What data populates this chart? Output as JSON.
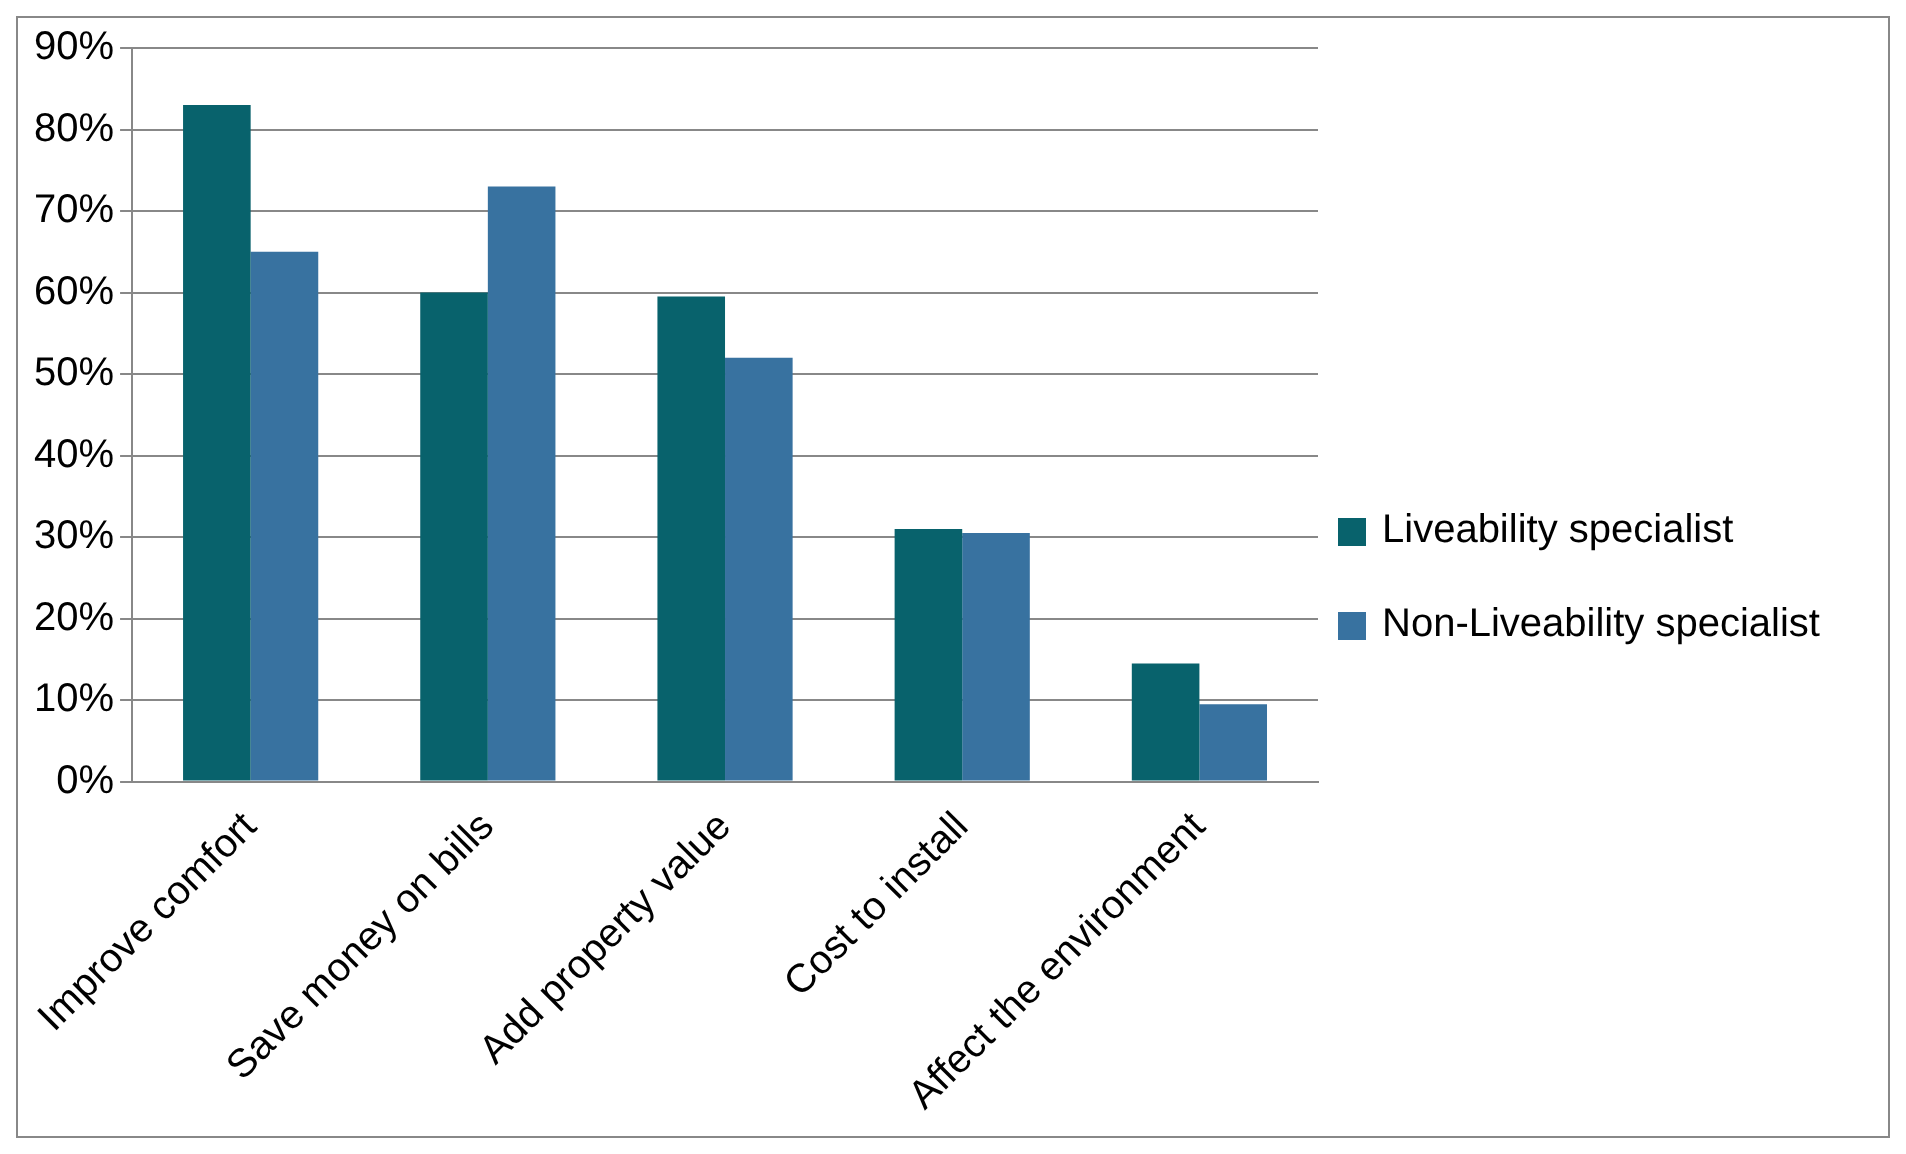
{
  "chart_data": {
    "type": "bar",
    "categories": [
      "Improve comfort",
      "Save money on bills",
      "Add property value",
      "Cost to install",
      "Affect the environment"
    ],
    "series": [
      {
        "name": "Liveability specialist",
        "color": "#08626c",
        "values": [
          83,
          60,
          59.5,
          31,
          14.5
        ]
      },
      {
        "name": "Non-Liveability specialist",
        "color": "#3872a0",
        "values": [
          65,
          73,
          52,
          30.5,
          9.5
        ]
      }
    ],
    "ylim": [
      0,
      90
    ],
    "yticks": [
      {
        "value": 0,
        "label": "0%"
      },
      {
        "value": 10,
        "label": "10%"
      },
      {
        "value": 20,
        "label": "20%"
      },
      {
        "value": 30,
        "label": "30%"
      },
      {
        "value": 40,
        "label": "40%"
      },
      {
        "value": 50,
        "label": "50%"
      },
      {
        "value": 60,
        "label": "60%"
      },
      {
        "value": 70,
        "label": "70%"
      },
      {
        "value": 80,
        "label": "80%"
      },
      {
        "value": 90,
        "label": "90%"
      }
    ],
    "grid": "y",
    "legend": "right"
  }
}
